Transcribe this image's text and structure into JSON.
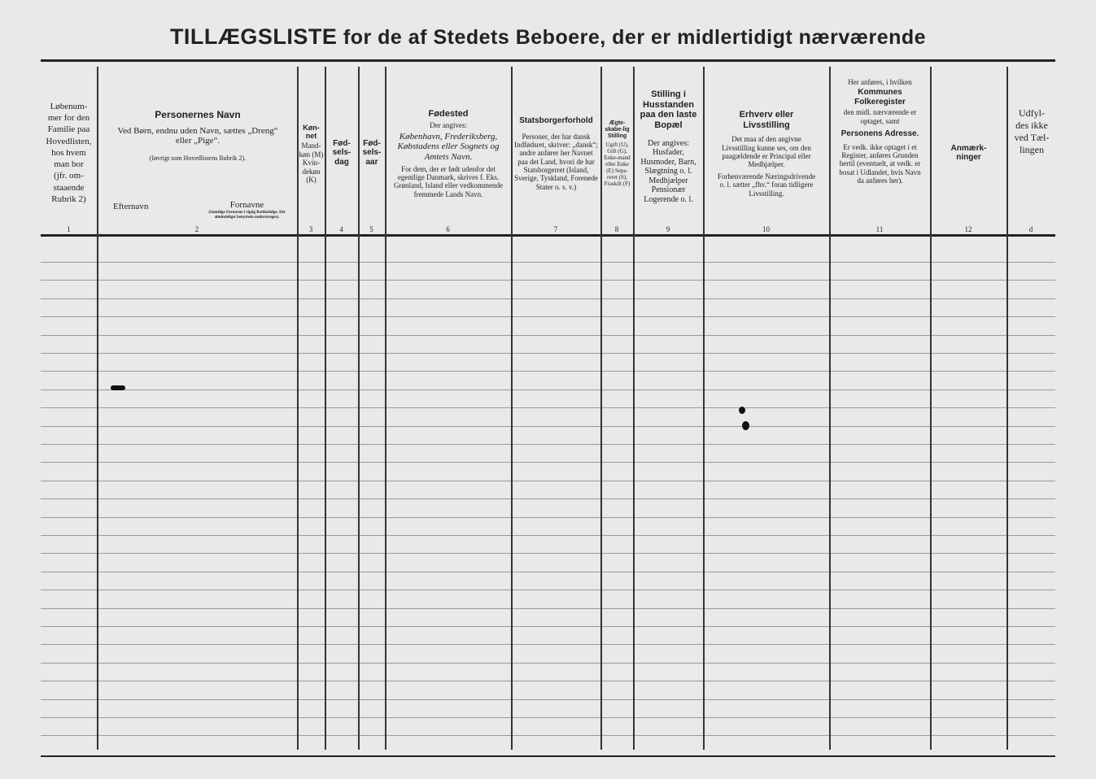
{
  "title": {
    "part1": "TILLÆGSLISTE",
    "part2": "for de af Stedets Beboere, der er midlertidigt nærværende"
  },
  "columns": [
    {
      "num": "1",
      "lines": [
        "Løbenum-",
        "mer for den",
        "Familie paa",
        "Hovedlisten,",
        "hos hvem",
        "man bor",
        "(jfr. om-",
        "staaende",
        "Rubrik 2)"
      ]
    },
    {
      "num": "2",
      "heading": "Personernes Navn",
      "text": "Ved Børn, endnu uden Navn, sættes „Dreng“ eller „Pige“.",
      "note": "(Iøvrigt som Hovedlistens Rubrik 2).",
      "sub_left": "Efternavn",
      "sub_right": "Fornavne",
      "sub_right_note": "(Samtlige Fornavne i rigtig Rækkefølge. Det almindeligst benyttede understreges)."
    },
    {
      "num": "3",
      "heading": "Køn-net",
      "text": "Mand-køn (M) Kvin-dekøn (K)"
    },
    {
      "num": "4",
      "heading": "Fød-sels-dag"
    },
    {
      "num": "5",
      "heading": "Fød-sels-aar"
    },
    {
      "num": "6",
      "heading": "Fødested",
      "text": "Der angives:",
      "italic": "København, Frederiksberg, Købstadens eller Sognets og Amtets Navn.",
      "note": "For dem, der er født udenfor det egentlige Danmark, skrives f. Eks. Grønland, Island eller vedkommende fremmede Lands Navn."
    },
    {
      "num": "7",
      "heading": "Statsborgerforhold",
      "text": "Personer, der har dansk Indfødsret, skriver: „dansk“; andre anfører her Navnet paa det Land, hvori de har Statsborgerret (Island, Sverige, Tyskland, Forenede Stater o. s. v.)"
    },
    {
      "num": "8",
      "heading": "Ægte-skabe-lig Stilling",
      "text": "Ugift (U), Gift (G), Enke-mand eller Enke (E) Sepa-reret (S), Fraskilt (F)"
    },
    {
      "num": "9",
      "heading": "Stilling i Husstanden paa den laste Bopæl",
      "text": "Der angives: Husfader, Husmoder, Barn, Slægtning o. l. Medhjælper Pensionær Logerende o. l."
    },
    {
      "num": "10",
      "heading": "Erhverv eller Livsstilling",
      "text": "Det maa af den angivne Livsstilling kunne ses, om den paagældende er Principal eller Medhjælper.",
      "note": "Forhenværende Næringsdrivende o. l. sætter „fhv.“ foran tidligere Livsstilling."
    },
    {
      "num": "11",
      "pre": "Her anføres, i hvilken",
      "heading": "Kommunes Folkeregister",
      "text": "den midl. nærværende er optaget, samt",
      "heading2": "Personens Adresse.",
      "note": "Er vedk. ikke optaget i et Register, anføres Grunden hertil (eventuelt, at vedk. er bosat i Udlandet, hvis Navn da anføres her)."
    },
    {
      "num": "12",
      "heading": "Anmærk-ninger"
    },
    {
      "num": "d",
      "text": "Udfyl-des ikke ved Tæl-lingen"
    }
  ]
}
